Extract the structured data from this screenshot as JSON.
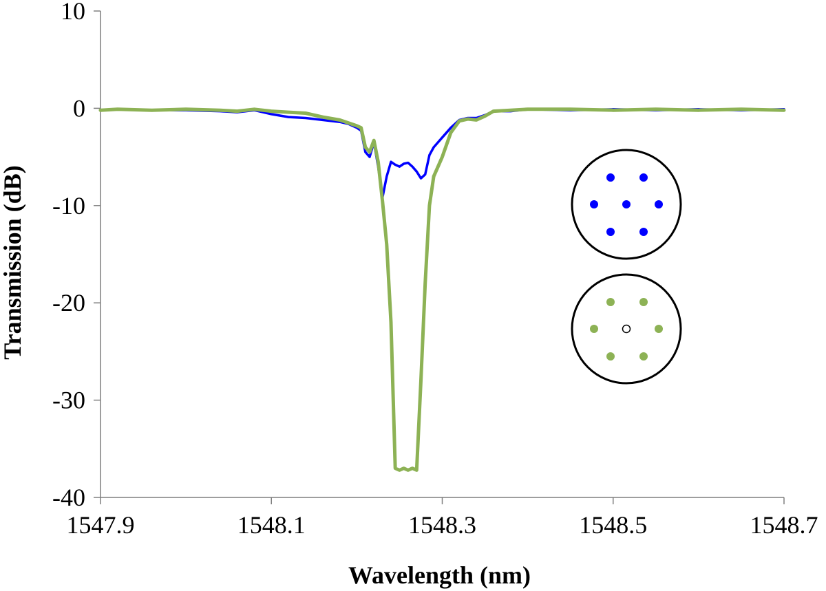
{
  "chart_data": {
    "type": "line",
    "title": "",
    "xlabel": "Wavelength (nm)",
    "ylabel": "Transmission (dB)",
    "xlim": [
      1547.9,
      1548.7
    ],
    "ylim": [
      -40,
      10
    ],
    "x_ticks": [
      "1547.9",
      "1548.1",
      "1548.3",
      "1548.5",
      "1548.7"
    ],
    "x_tick_values": [
      1547.9,
      1548.1,
      1548.3,
      1548.5,
      1548.7
    ],
    "y_ticks": [
      "10",
      "0",
      "-10",
      "-20",
      "-30",
      "-40"
    ],
    "y_tick_values": [
      10,
      0,
      -10,
      -20,
      -30,
      -40
    ],
    "grid": false,
    "series": [
      {
        "name": "seven-core (all cores)",
        "color": "#0000ff",
        "x": [
          1547.9,
          1547.92,
          1547.96,
          1548.0,
          1548.04,
          1548.06,
          1548.08,
          1548.1,
          1548.12,
          1548.14,
          1548.16,
          1548.18,
          1548.19,
          1548.2,
          1548.205,
          1548.21,
          1548.215,
          1548.22,
          1548.225,
          1548.23,
          1548.235,
          1548.24,
          1548.245,
          1548.25,
          1548.255,
          1548.26,
          1548.265,
          1548.27,
          1548.275,
          1548.28,
          1548.285,
          1548.29,
          1548.3,
          1548.31,
          1548.32,
          1548.33,
          1548.34,
          1548.35,
          1548.36,
          1548.38,
          1548.4,
          1548.45,
          1548.5,
          1548.55,
          1548.6,
          1548.65,
          1548.7
        ],
        "values": [
          -0.2,
          -0.1,
          -0.2,
          -0.2,
          -0.3,
          -0.4,
          -0.2,
          -0.6,
          -0.9,
          -1.0,
          -1.2,
          -1.4,
          -1.6,
          -2.0,
          -2.3,
          -4.5,
          -5.0,
          -3.5,
          -6.0,
          -9.2,
          -7.0,
          -5.5,
          -5.8,
          -6.0,
          -5.7,
          -5.6,
          -6.0,
          -6.5,
          -7.2,
          -6.8,
          -4.8,
          -4.0,
          -3.0,
          -2.0,
          -1.2,
          -1.0,
          -1.0,
          -0.7,
          -0.3,
          -0.3,
          -0.1,
          -0.2,
          -0.1,
          -0.2,
          -0.1,
          -0.2,
          -0.1
        ]
      },
      {
        "name": "seven-core (center core absent)",
        "color": "#8db255",
        "x": [
          1547.9,
          1547.92,
          1547.96,
          1548.0,
          1548.04,
          1548.06,
          1548.08,
          1548.1,
          1548.12,
          1548.14,
          1548.16,
          1548.18,
          1548.19,
          1548.2,
          1548.205,
          1548.21,
          1548.215,
          1548.22,
          1548.225,
          1548.23,
          1548.235,
          1548.24,
          1548.245,
          1548.25,
          1548.255,
          1548.26,
          1548.265,
          1548.27,
          1548.275,
          1548.28,
          1548.285,
          1548.29,
          1548.3,
          1548.31,
          1548.32,
          1548.33,
          1548.34,
          1548.35,
          1548.36,
          1548.38,
          1548.4,
          1548.45,
          1548.5,
          1548.55,
          1548.6,
          1548.65,
          1548.7
        ],
        "values": [
          -0.2,
          -0.1,
          -0.2,
          -0.1,
          -0.2,
          -0.3,
          -0.1,
          -0.3,
          -0.4,
          -0.5,
          -0.9,
          -1.2,
          -1.5,
          -1.8,
          -2.0,
          -4.0,
          -4.5,
          -3.3,
          -5.5,
          -9.5,
          -14.0,
          -22.0,
          -37.0,
          -37.2,
          -37.0,
          -37.2,
          -37.0,
          -37.2,
          -28.0,
          -18.0,
          -10.0,
          -7.0,
          -5.0,
          -2.5,
          -1.3,
          -1.1,
          -1.2,
          -0.8,
          -0.3,
          -0.2,
          -0.1,
          -0.1,
          -0.2,
          -0.1,
          -0.2,
          -0.1,
          -0.2
        ]
      }
    ],
    "insets": [
      {
        "name": "fiber-all-cores",
        "cores_color": "#0000ff",
        "center_core": "filled"
      },
      {
        "name": "fiber-center-core-empty",
        "cores_color": "#8db255",
        "center_core": "hollow"
      }
    ]
  }
}
